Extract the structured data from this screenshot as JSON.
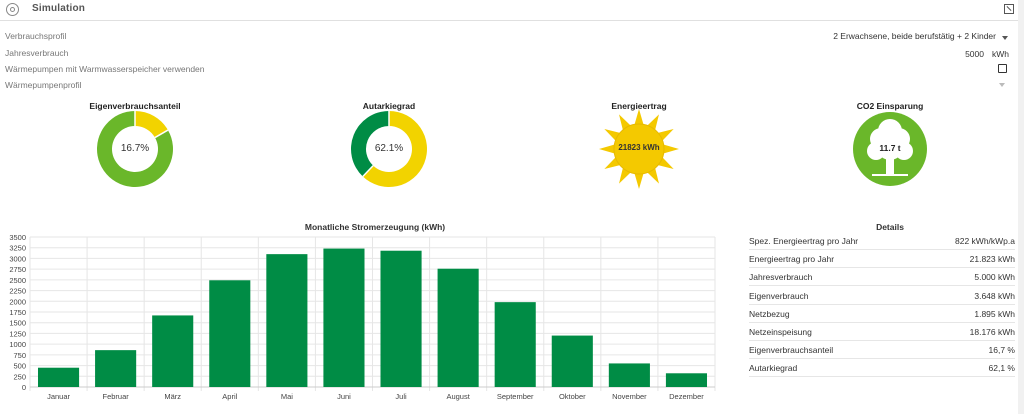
{
  "header": {
    "title": "Simulation"
  },
  "settings": {
    "profile_label": "Verbrauchsprofil",
    "profile_value": "2 Erwachsene, beide berufstätig + 2 Kinder",
    "consumption_label": "Jahresverbrauch",
    "consumption_value": "5000",
    "consumption_unit": "kWh",
    "heatpump_label": "Wärmepumpen mit Warmwasserspeicher verwenden",
    "heatpump_checked": false,
    "heatpump_profile_label": "Wärmepumpenprofil"
  },
  "kpis": {
    "eigen_title": "Eigenverbrauchsanteil",
    "eigen_value": "16.7%",
    "eigen_fraction": 0.167,
    "autarkie_title": "Autarkiegrad",
    "autarkie_value": "62.1%",
    "autarkie_fraction": 0.621,
    "energie_title": "Energieertrag",
    "energie_value": "21823 kWh",
    "co2_title": "CO2 Einsparung",
    "co2_value": "11.7 t"
  },
  "colors": {
    "green": "#008c45",
    "light_green": "#6ab72a",
    "yellow": "#f2d300",
    "sun_orange": "#f4c900"
  },
  "chart_data": {
    "type": "bar",
    "title": "Monatliche Stromerzeugung (kWh)",
    "categories": [
      "Januar",
      "Februar",
      "März",
      "April",
      "Mai",
      "Juni",
      "Juli",
      "August",
      "September",
      "Oktober",
      "November",
      "Dezember"
    ],
    "values": [
      450,
      860,
      1670,
      2490,
      3100,
      3230,
      3180,
      2760,
      1980,
      1200,
      550,
      320
    ],
    "yticks": [
      "0",
      "250",
      "500",
      "750",
      "1000",
      "1250",
      "1500",
      "1750",
      "2000",
      "2250",
      "2500",
      "2750",
      "3000",
      "3250",
      "3500"
    ],
    "ylim": [
      0,
      3500
    ],
    "grid": true,
    "color": "#008c45"
  },
  "details": {
    "title": "Details",
    "rows": [
      {
        "label": "Spez. Energieertrag pro Jahr",
        "value": "822 kWh/kWp.a"
      },
      {
        "label": "Energieertrag pro Jahr",
        "value": "21.823 kWh"
      },
      {
        "label": "Jahresverbrauch",
        "value": "5.000 kWh"
      },
      {
        "label": "Eigenverbrauch",
        "value": "3.648 kWh"
      },
      {
        "label": "Netzbezug",
        "value": "1.895 kWh"
      },
      {
        "label": "Netzeinspeisung",
        "value": "18.176 kWh"
      },
      {
        "label": "Eigenverbrauchsanteil",
        "value": "16,7 %"
      },
      {
        "label": "Autarkiegrad",
        "value": "62,1 %"
      }
    ]
  }
}
